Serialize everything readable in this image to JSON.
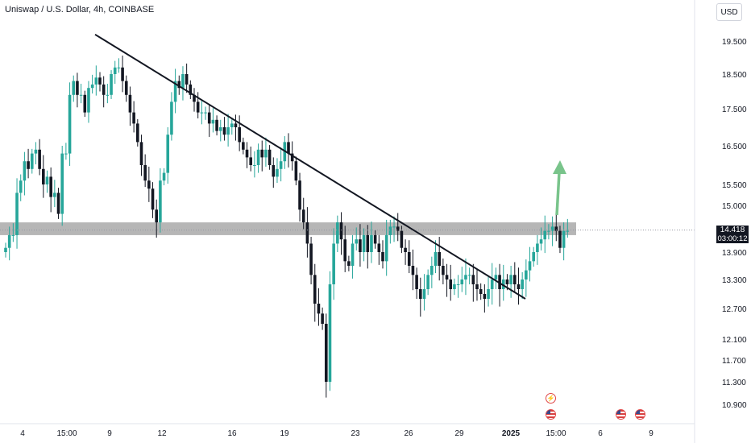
{
  "header": {
    "title": "Uniswap / U.S. Dollar, 4h, COINBASE",
    "currency": "USD"
  },
  "price_badge": {
    "price": "14.418",
    "countdown": "03:00:12"
  },
  "events": [
    {
      "icon": "lightning-icon"
    },
    {
      "icon": "us-flag-icon"
    },
    {
      "icon": "us-flag-icon"
    },
    {
      "icon": "us-flag-icon"
    }
  ],
  "colors": {
    "up": "#26a69a",
    "down": "#131722",
    "zone": "#9e9e9e",
    "arrow": "#79c48b",
    "trend": "#131722"
  },
  "chart_data": {
    "type": "candlestick",
    "y_ticks": [
      "19.500",
      "18.500",
      "17.500",
      "16.500",
      "15.500",
      "15.000",
      "13.900",
      "13.300",
      "12.700",
      "12.100",
      "11.700",
      "11.300",
      "10.900"
    ],
    "x_ticks": [
      "4",
      "15:00",
      "9",
      "12",
      "16",
      "19",
      "23",
      "26",
      "29",
      "2025",
      "15:00",
      "6",
      "9"
    ],
    "zone": {
      "low": 14.3,
      "high": 14.6
    },
    "trendline": {
      "start_price": 19.7,
      "end_price": 12.9
    },
    "last_price": 14.418,
    "closes": [
      14.0,
      14.3,
      14.3,
      15.3,
      15.6,
      16.1,
      15.9,
      16.3,
      16.4,
      15.9,
      15.5,
      15.7,
      15.2,
      15.3,
      14.8,
      16.3,
      16.3,
      17.9,
      18.3,
      17.9,
      17.9,
      17.4,
      18.1,
      18.2,
      18.4,
      18.2,
      17.9,
      17.9,
      18.5,
      18.7,
      18.7,
      18.3,
      17.9,
      17.4,
      17.1,
      16.6,
      16.0,
      15.6,
      15.4,
      14.9,
      14.6,
      15.6,
      15.8,
      16.8,
      17.7,
      18.3,
      18.1,
      18.5,
      18.2,
      17.9,
      17.7,
      17.4,
      17.4,
      17.4,
      17.1,
      17.2,
      16.9,
      17.0,
      16.8,
      17.0,
      17.1,
      17.0,
      16.6,
      16.4,
      16.2,
      16.0,
      16.0,
      16.4,
      16.2,
      16.4,
      16.0,
      15.7,
      15.9,
      16.1,
      16.6,
      16.3,
      16.1,
      15.6,
      14.9,
      14.6,
      14.1,
      13.4,
      12.8,
      12.6,
      12.4,
      11.3,
      13.2,
      14.1,
      14.6,
      14.2,
      13.7,
      13.6,
      14.1,
      14.2,
      13.9,
      14.3,
      13.9,
      14.3,
      14.1,
      13.9,
      13.7,
      14.3,
      14.5,
      14.5,
      14.4,
      14.0,
      13.9,
      13.6,
      13.4,
      13.1,
      12.9,
      13.1,
      13.4,
      13.6,
      13.9,
      13.6,
      13.4,
      13.3,
      13.1,
      13.2,
      13.2,
      13.3,
      13.4,
      13.4,
      13.2,
      13.1,
      13.0,
      12.9,
      13.1,
      13.3,
      13.4,
      13.1,
      13.3,
      13.2,
      13.4,
      13.2,
      13.1,
      13.3,
      13.5,
      13.7,
      13.9,
      14.1,
      14.2,
      14.4,
      14.4,
      14.5,
      14.4,
      14.0,
      14.4,
      14.4
    ]
  }
}
